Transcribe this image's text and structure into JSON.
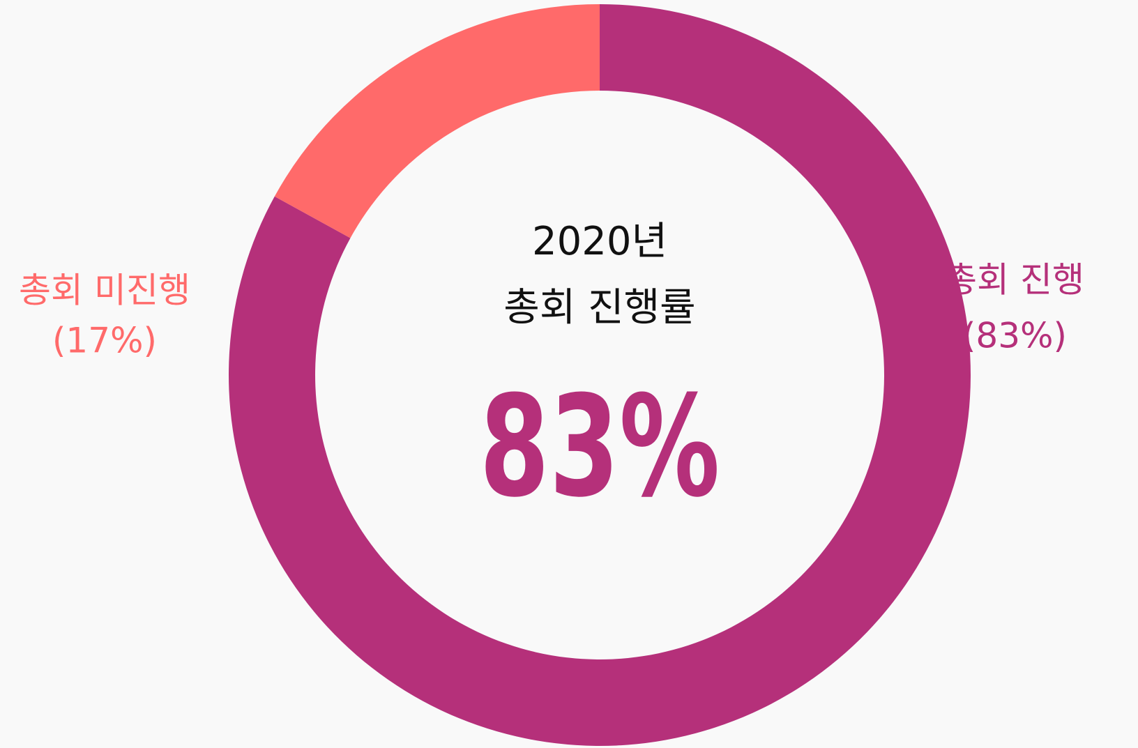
{
  "chart_data": {
    "type": "donut",
    "title": "2020년",
    "subtitle": "총회 진행률",
    "annotation": "83%",
    "categories": [
      "총회 진행",
      "총회 미진행"
    ],
    "values": [
      83,
      17
    ],
    "value_labels": [
      "(83%)",
      "(17%)"
    ],
    "colors": [
      "#b5307a",
      "#ff6a6a"
    ]
  }
}
